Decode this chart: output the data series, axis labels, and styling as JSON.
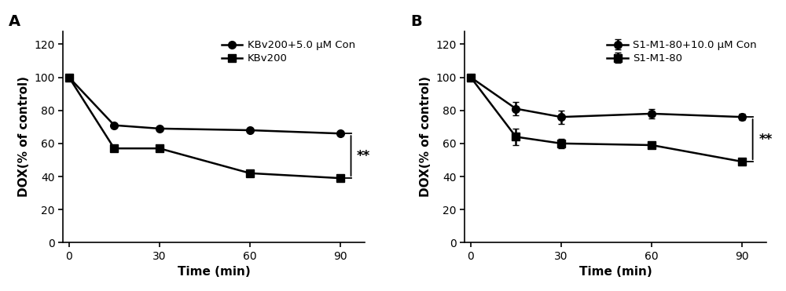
{
  "panel_A": {
    "label": "A",
    "x": [
      0,
      15,
      30,
      60,
      90
    ],
    "series1": {
      "label": "KBv200+5.0 μM Con",
      "y": [
        100,
        71,
        69,
        68,
        66
      ],
      "yerr": [
        0,
        0,
        0,
        0,
        0
      ],
      "marker": "o",
      "color": "#000000"
    },
    "series2": {
      "label": "KBv200",
      "y": [
        100,
        57,
        57,
        42,
        39
      ],
      "yerr": [
        0,
        0,
        0,
        0,
        0
      ],
      "marker": "s",
      "color": "#000000"
    },
    "xlabel": "Time (min)",
    "ylabel": "DOX(% of control)",
    "ylim": [
      0,
      128
    ],
    "yticks": [
      0,
      20,
      40,
      60,
      80,
      100,
      120
    ],
    "xticks": [
      0,
      30,
      60,
      90
    ],
    "xlim": [
      -2,
      98
    ],
    "significance": "**",
    "sig_y1": 66,
    "sig_y2": 39
  },
  "panel_B": {
    "label": "B",
    "x": [
      0,
      15,
      30,
      60,
      90
    ],
    "series1": {
      "label": "S1-M1-80+10.0 μM Con",
      "y": [
        100,
        81,
        76,
        78,
        76
      ],
      "yerr": [
        0,
        4,
        4,
        3,
        2
      ],
      "marker": "o",
      "color": "#000000"
    },
    "series2": {
      "label": "S1-M1-80",
      "y": [
        100,
        64,
        60,
        59,
        49
      ],
      "yerr": [
        0,
        5,
        3,
        2,
        2
      ],
      "marker": "s",
      "color": "#000000"
    },
    "xlabel": "Time (min)",
    "ylabel": "DOX(% of control)",
    "ylim": [
      0,
      128
    ],
    "yticks": [
      0,
      20,
      40,
      60,
      80,
      100,
      120
    ],
    "xticks": [
      0,
      30,
      60,
      90
    ],
    "xlim": [
      -2,
      98
    ],
    "significance": "**",
    "sig_y1": 76,
    "sig_y2": 49
  },
  "background_color": "#ffffff",
  "line_color": "#000000",
  "line_width": 1.8,
  "marker_size": 7,
  "font_size_label": 11,
  "font_size_tick": 10,
  "font_size_legend": 9.5,
  "font_size_panel": 14
}
